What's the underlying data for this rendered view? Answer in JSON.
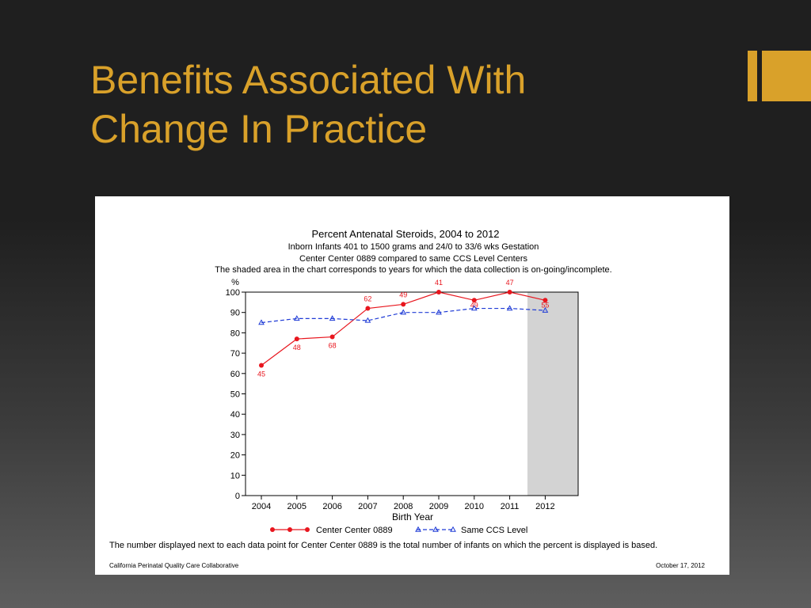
{
  "slide": {
    "title_line1": "Benefits Associated With",
    "title_line2": "Change In Practice",
    "accent_color": "#d9a12a"
  },
  "chart_data": {
    "type": "line",
    "title": "Percent Antenatal Steroids, 2004 to 2012",
    "subtitle1": "Inborn Infants 401 to 1500 grams and 24/0 to 33/6 wks Gestation",
    "subtitle2": "Center Center 0889 compared to same CCS Level Centers",
    "subtitle3": "The shaded area in the chart corresponds to years for which the data collection is on-going/incomplete.",
    "ylabel": "%",
    "xlabel": "Birth Year",
    "x": [
      "2004",
      "2005",
      "2006",
      "2007",
      "2008",
      "2009",
      "2010",
      "2011",
      "2012"
    ],
    "ylim": [
      0,
      100
    ],
    "yticks": [
      0,
      10,
      20,
      30,
      40,
      50,
      60,
      70,
      80,
      90,
      100
    ],
    "shaded_x": [
      "2012"
    ],
    "series": [
      {
        "name": "Center Center 0889",
        "color": "#e8161e",
        "values": [
          64,
          77,
          78,
          92,
          94,
          100,
          96,
          100,
          96
        ],
        "point_labels": [
          "45",
          "48",
          "68",
          "62",
          "49",
          "41",
          "49",
          "47",
          "55"
        ]
      },
      {
        "name": "Same CCS Level",
        "color": "#1f3bd6",
        "values": [
          85,
          87,
          87,
          86,
          90,
          90,
          92,
          92,
          91
        ]
      }
    ],
    "legend_position": "bottom",
    "footnote": "The number displayed next to each data point for Center Center 0889 is the total number of infants on which the percent is displayed is based.",
    "source": "California Perinatal Quality Care Collaborative",
    "date": "October 17, 2012"
  }
}
